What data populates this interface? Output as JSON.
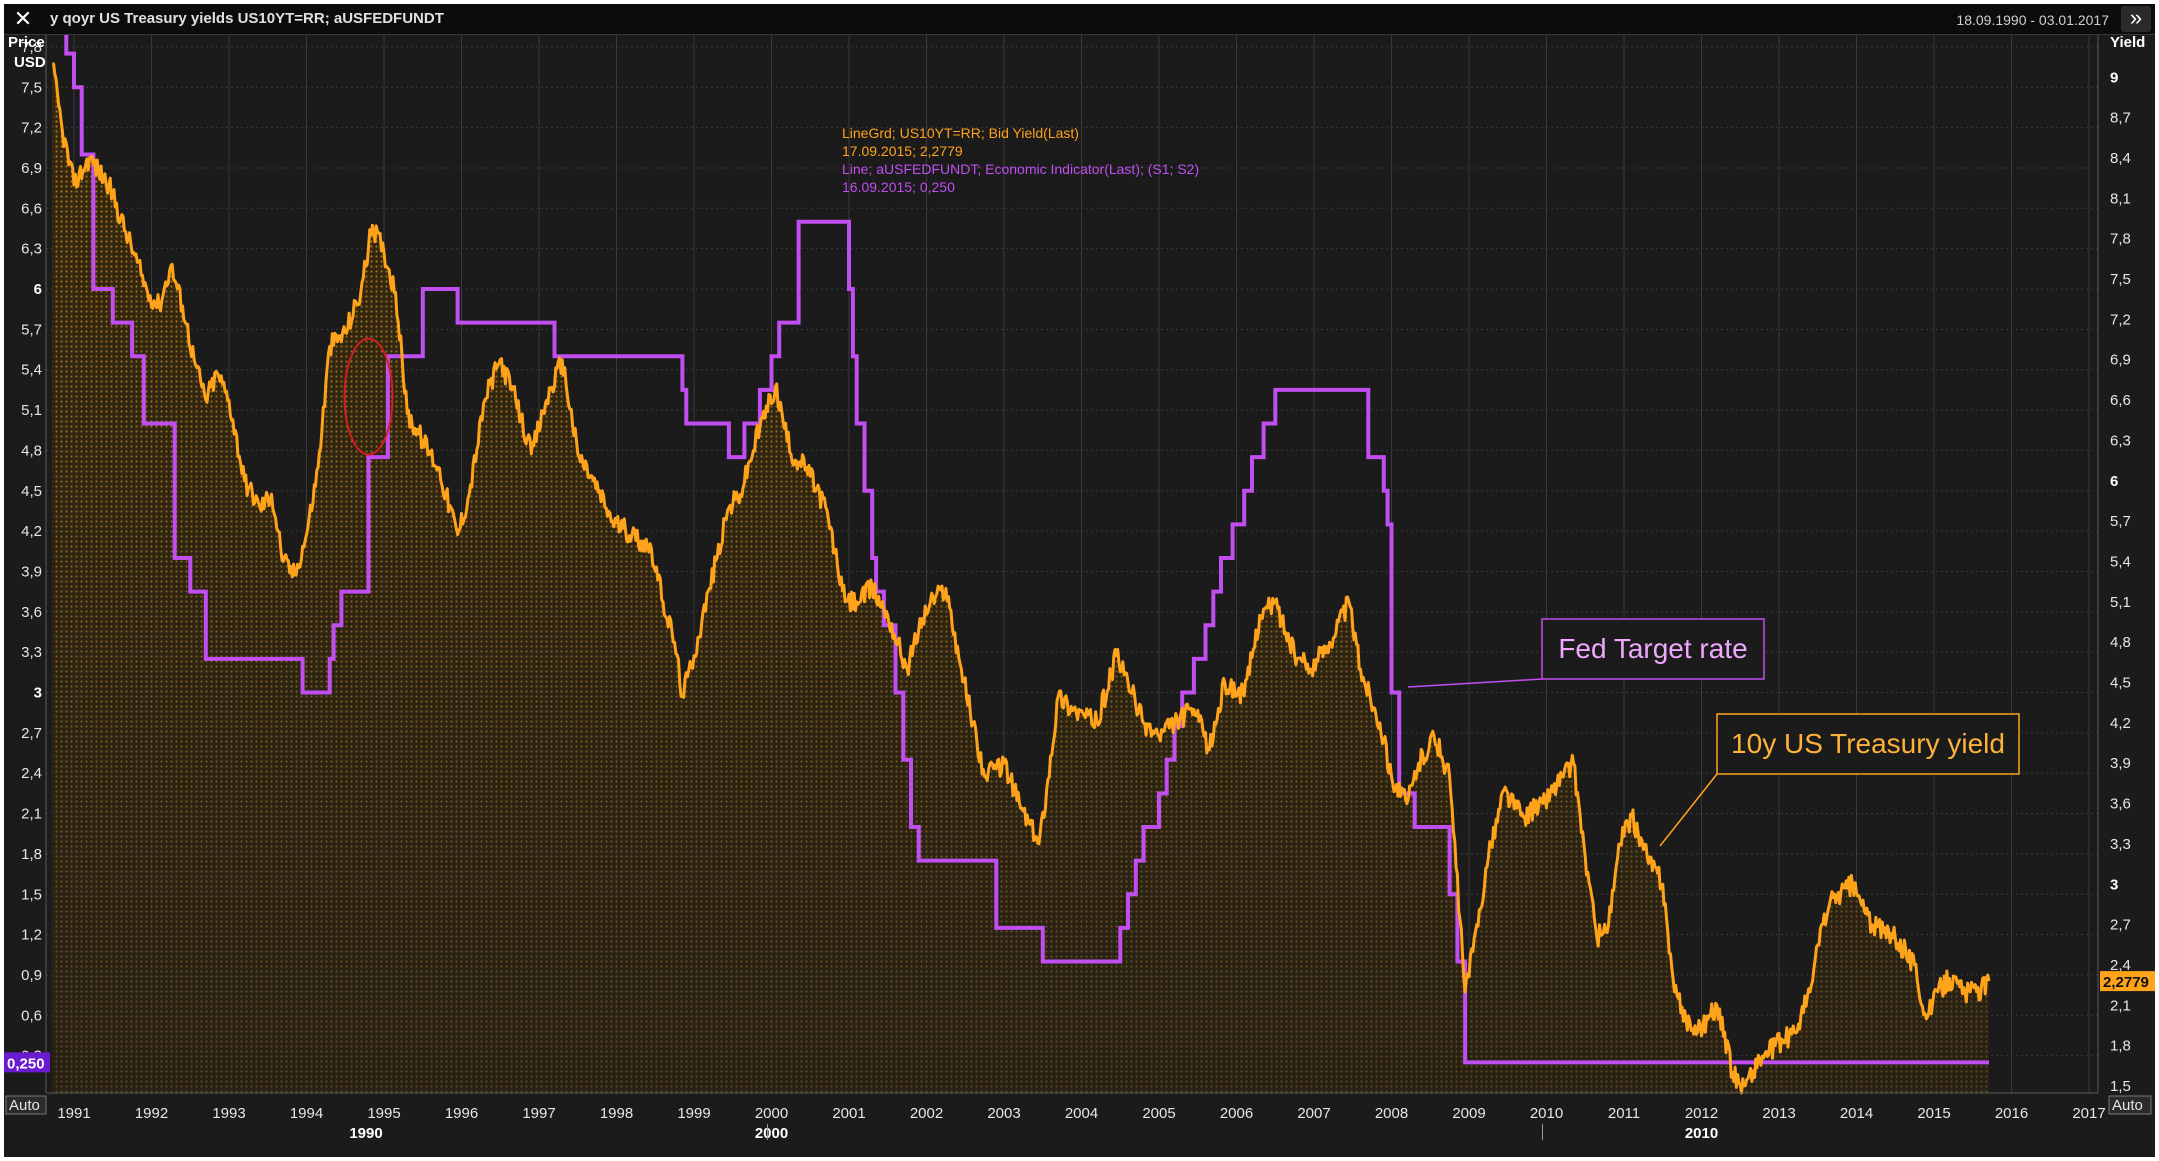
{
  "window": {
    "title": "y qoyr US Treasury yields US10YT=RR; aUSFEDFUNDT",
    "date_range": "18.09.1990 - 03.01.2017",
    "close_label": "✕",
    "expand_label": "»"
  },
  "colors": {
    "background": "#1b1b1b",
    "treasury": "#ffa31a",
    "fed": "#c04ef0",
    "grid": "#3a3a3a",
    "ellipse": "#d02020"
  },
  "left_axis": {
    "title": "Price",
    "unit": "USD",
    "ticks": [
      "7,8",
      "7,5",
      "7,2",
      "6,9",
      "6,6",
      "6,3",
      "6",
      "5,7",
      "5,4",
      "5,1",
      "4,8",
      "4,5",
      "4,2",
      "3,9",
      "3,6",
      "3,3",
      "3",
      "2,7",
      "2,4",
      "2,1",
      "1,8",
      "1,5",
      "1,2",
      "0,9",
      "0,6",
      "0,3"
    ],
    "bold_ticks": [
      "6",
      "3"
    ],
    "value_badge": "0,250",
    "auto_label": "Auto"
  },
  "right_axis": {
    "title": "Yield",
    "ticks": [
      "9",
      "8,7",
      "8,4",
      "8,1",
      "7,8",
      "7,5",
      "7,2",
      "6,9",
      "6,6",
      "6,3",
      "6",
      "5,7",
      "5,4",
      "5,1",
      "4,8",
      "4,5",
      "4,2",
      "3,9",
      "3,6",
      "3,3",
      "3",
      "2,7",
      "2,4",
      "2,1",
      "1,8",
      "1,5"
    ],
    "bold_ticks": [
      "9",
      "6",
      "3"
    ],
    "value_badge": "2,2779",
    "auto_label": "Auto"
  },
  "x_axis": {
    "years": [
      "1991",
      "1992",
      "1993",
      "1994",
      "1995",
      "1996",
      "1997",
      "1998",
      "1999",
      "2000",
      "2001",
      "2002",
      "2003",
      "2004",
      "2005",
      "2006",
      "2007",
      "2008",
      "2009",
      "2010",
      "2011",
      "2012",
      "2013",
      "2014",
      "2015",
      "2016",
      "2017"
    ],
    "decades": [
      "1990",
      "2000",
      "2010"
    ]
  },
  "legend": {
    "line1": "LineGrd; US10YT=RR; Bid Yield(Last)",
    "line2": "17.09.2015; 2,2779",
    "line3": "Line; aUSFEDFUNDT; Economic Indicator(Last); (S1; S2)",
    "line4": "16.09.2015; 0,250"
  },
  "annotations": {
    "fed_label": "Fed Target rate",
    "treasury_label": "10y US Treasury yield"
  },
  "chart_data": {
    "type": "line",
    "title": "y qoyr US Treasury yields US10YT=RR; aUSFEDFUNDT",
    "xlabel": "",
    "ylabel_left": "Price USD",
    "ylabel_right": "Yield",
    "xlim": [
      "1990-09-18",
      "2017-01-03"
    ],
    "ylim_left": [
      0,
      8.1
    ],
    "ylim_right": [
      1.3,
      9.1
    ],
    "grid": true,
    "series": [
      {
        "name": "US10YT=RR",
        "axis": "right",
        "style": "area",
        "x": [
          1990.72,
          1990.85,
          1991.0,
          1991.2,
          1991.45,
          1991.7,
          1991.95,
          1992.1,
          1992.25,
          1992.4,
          1992.55,
          1992.7,
          1992.85,
          1993.0,
          1993.2,
          1993.4,
          1993.55,
          1993.7,
          1993.85,
          1994.0,
          1994.15,
          1994.3,
          1994.5,
          1994.7,
          1994.85,
          1995.0,
          1995.15,
          1995.3,
          1995.5,
          1995.7,
          1995.95,
          1996.1,
          1996.3,
          1996.5,
          1996.7,
          1996.9,
          1997.1,
          1997.3,
          1997.5,
          1997.7,
          1997.95,
          1998.2,
          1998.45,
          1998.6,
          1998.75,
          1998.85,
          1999.0,
          1999.2,
          1999.45,
          1999.6,
          1999.85,
          2000.05,
          2000.25,
          2000.45,
          2000.7,
          2000.95,
          2001.1,
          2001.3,
          2001.5,
          2001.75,
          2001.9,
          2002.05,
          2002.25,
          2002.45,
          2002.6,
          2002.75,
          2003.0,
          2003.2,
          2003.45,
          2003.55,
          2003.7,
          2003.9,
          2004.2,
          2004.45,
          2004.6,
          2004.8,
          2005.0,
          2005.2,
          2005.45,
          2005.65,
          2005.85,
          2006.1,
          2006.3,
          2006.5,
          2006.75,
          2006.95,
          2007.2,
          2007.45,
          2007.6,
          2007.85,
          2008.0,
          2008.2,
          2008.35,
          2008.55,
          2008.75,
          2008.95,
          2009.05,
          2009.25,
          2009.45,
          2009.7,
          2009.95,
          2010.2,
          2010.35,
          2010.5,
          2010.65,
          2010.8,
          2010.95,
          2011.1,
          2011.3,
          2011.5,
          2011.65,
          2011.8,
          2011.95,
          2012.2,
          2012.4,
          2012.55,
          2012.75,
          2012.95,
          2013.2,
          2013.4,
          2013.55,
          2013.7,
          2013.95,
          2014.2,
          2014.5,
          2014.75,
          2014.9,
          2015.05,
          2015.2,
          2015.4,
          2015.55,
          2015.71
        ],
        "y": [
          9.1,
          8.6,
          8.2,
          8.4,
          8.2,
          7.8,
          7.4,
          7.3,
          7.6,
          7.3,
          6.9,
          6.6,
          6.8,
          6.6,
          6.0,
          5.8,
          5.9,
          5.4,
          5.3,
          5.6,
          6.1,
          7.0,
          7.1,
          7.4,
          7.9,
          7.7,
          7.4,
          6.5,
          6.3,
          6.1,
          5.6,
          5.9,
          6.6,
          6.9,
          6.6,
          6.2,
          6.6,
          6.9,
          6.2,
          6.0,
          5.7,
          5.6,
          5.5,
          5.1,
          4.8,
          4.4,
          4.7,
          5.2,
          5.8,
          5.9,
          6.4,
          6.7,
          6.2,
          6.1,
          5.8,
          5.1,
          5.1,
          5.2,
          5.0,
          4.6,
          4.9,
          5.1,
          5.2,
          4.6,
          4.2,
          3.8,
          3.9,
          3.6,
          3.3,
          3.7,
          4.4,
          4.3,
          4.2,
          4.7,
          4.5,
          4.2,
          4.1,
          4.2,
          4.3,
          4.0,
          4.5,
          4.4,
          5.0,
          5.1,
          4.7,
          4.6,
          4.8,
          5.1,
          4.6,
          4.2,
          3.8,
          3.6,
          3.9,
          4.1,
          3.8,
          2.2,
          2.5,
          3.2,
          3.7,
          3.5,
          3.6,
          3.8,
          3.9,
          3.2,
          2.6,
          2.7,
          3.3,
          3.5,
          3.2,
          3.0,
          2.2,
          2.0,
          1.9,
          2.1,
          1.6,
          1.5,
          1.7,
          1.8,
          1.9,
          2.2,
          2.7,
          2.9,
          3.0,
          2.7,
          2.6,
          2.4,
          2.0,
          2.2,
          2.3,
          2.2,
          2.2,
          2.28
        ]
      },
      {
        "name": "aUSFEDFUNDT",
        "axis": "left",
        "style": "step",
        "x": [
          1990.72,
          1990.9,
          1991.0,
          1991.1,
          1991.25,
          1991.5,
          1991.75,
          1991.9,
          1992.3,
          1992.5,
          1992.7,
          1993.95,
          1994.1,
          1994.3,
          1994.35,
          1994.45,
          1994.8,
          1995.05,
          1995.5,
          1995.95,
          1997.2,
          1998.75,
          1998.85,
          1998.9,
          1999.45,
          1999.65,
          1999.85,
          2000.0,
          2000.1,
          2000.35,
          2001.0,
          2001.05,
          2001.1,
          2001.2,
          2001.3,
          2001.35,
          2001.45,
          2001.6,
          2001.7,
          2001.8,
          2001.9,
          2001.95,
          2002.9,
          2003.5,
          2004.5,
          2004.6,
          2004.7,
          2004.8,
          2005.0,
          2005.1,
          2005.2,
          2005.3,
          2005.45,
          2005.6,
          2005.7,
          2005.8,
          2005.95,
          2006.1,
          2006.2,
          2006.35,
          2006.5,
          2007.7,
          2007.9,
          2007.95,
          2008.0,
          2008.1,
          2008.3,
          2008.75,
          2008.85,
          2008.95,
          2015.71
        ],
        "y": [
          8.0,
          7.75,
          7.5,
          7.0,
          6.0,
          5.75,
          5.5,
          5.0,
          4.0,
          3.75,
          3.25,
          3.0,
          3.0,
          3.25,
          3.5,
          3.75,
          4.75,
          5.5,
          6.0,
          5.75,
          5.5,
          5.5,
          5.25,
          5.0,
          4.75,
          5.0,
          5.25,
          5.5,
          5.75,
          6.5,
          6.0,
          5.5,
          5.0,
          4.5,
          4.0,
          3.75,
          3.5,
          3.0,
          2.5,
          2.0,
          1.75,
          1.75,
          1.25,
          1.0,
          1.25,
          1.5,
          1.75,
          2.0,
          2.25,
          2.5,
          2.75,
          3.0,
          3.25,
          3.5,
          3.75,
          4.0,
          4.25,
          4.5,
          4.75,
          5.0,
          5.25,
          4.75,
          4.5,
          4.25,
          3.0,
          2.25,
          2.0,
          1.5,
          1.0,
          0.25,
          0.25
        ]
      }
    ],
    "highlight": {
      "type": "ellipse",
      "x": 1994.8,
      "y_left": 5.2,
      "note": "red outline"
    }
  }
}
